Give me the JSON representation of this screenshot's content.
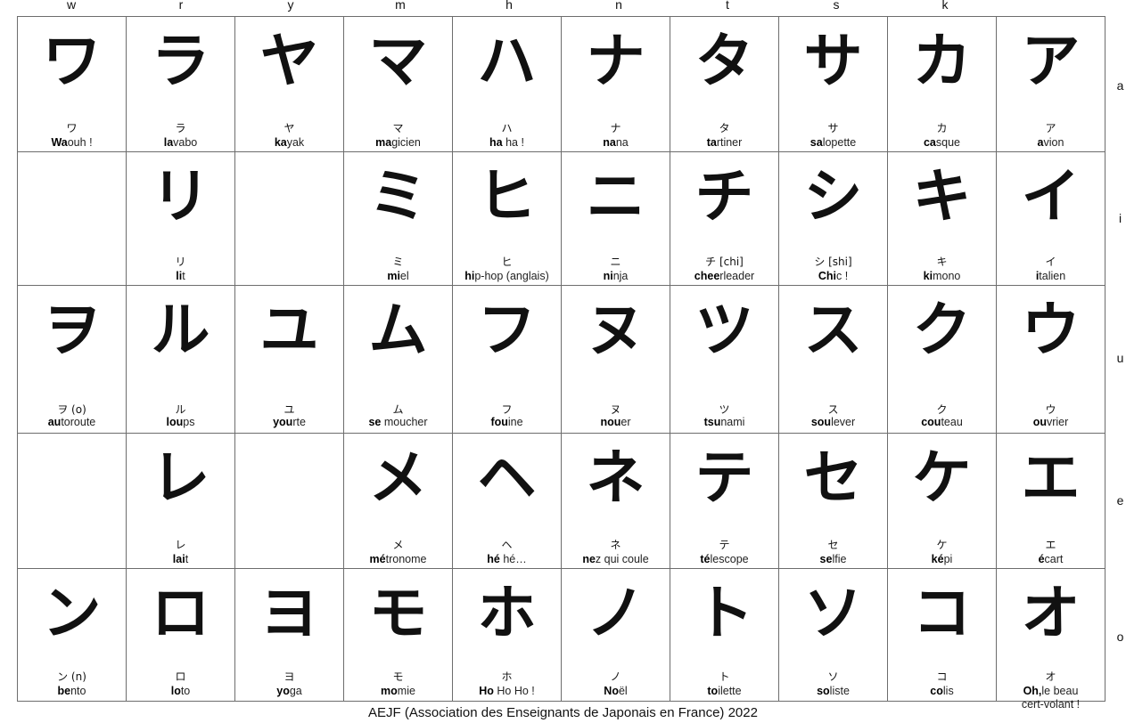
{
  "columns": [
    "w",
    "r",
    "y",
    "m",
    "h",
    "n",
    "t",
    "s",
    "k",
    ""
  ],
  "rows": [
    "a",
    "i",
    "u",
    "e",
    "o"
  ],
  "grid": [
    [
      {
        "big": "ワ",
        "small": "ワ",
        "w1": "Wa",
        "w2": "ouh !",
        "w3": ""
      },
      {
        "big": "ラ",
        "small": "ラ",
        "w1": "la",
        "w2": "vabo",
        "w3": ""
      },
      {
        "big": "ヤ",
        "small": "ヤ",
        "w1": "ka",
        "w2": "ya",
        "w3": "k"
      },
      {
        "big": "マ",
        "small": "マ",
        "w1": "ma",
        "w2": "gicien",
        "w3": ""
      },
      {
        "big": "ハ",
        "small": "ハ",
        "w1": "ha",
        "w2": " ha !",
        "w3": ""
      },
      {
        "big": "ナ",
        "small": "ナ",
        "w1": "na",
        "w2": "na",
        "w3": ""
      },
      {
        "big": "タ",
        "small": "タ",
        "w1": "ta",
        "w2": "rtiner",
        "w3": ""
      },
      {
        "big": "サ",
        "small": "サ",
        "w1": "sa",
        "w2": "lopette",
        "w3": ""
      },
      {
        "big": "カ",
        "small": "カ",
        "w1": "ca",
        "w2": "sque",
        "w3": ""
      },
      {
        "big": "ア",
        "small": "ア",
        "w1": "a",
        "w2": "vion",
        "w3": ""
      }
    ],
    [
      {
        "big": "",
        "small": "",
        "w1": "",
        "w2": "",
        "w3": ""
      },
      {
        "big": "リ",
        "small": "リ",
        "w1": "li",
        "w2": "t",
        "w3": ""
      },
      {
        "big": "",
        "small": "",
        "w1": "",
        "w2": "",
        "w3": ""
      },
      {
        "big": "ミ",
        "small": "ミ",
        "w1": "mi",
        "w2": "el",
        "w3": ""
      },
      {
        "big": "ヒ",
        "small": "ヒ",
        "w1": "hi",
        "w2": "p-hop (anglais)",
        "w3": ""
      },
      {
        "big": "ニ",
        "small": "ニ",
        "w1": "ni",
        "w2": "nja",
        "w3": ""
      },
      {
        "big": "チ",
        "small": "チ [chi]",
        "w1": "chee",
        "w2": "rleader",
        "w3": ""
      },
      {
        "big": "シ",
        "small": "シ [shi]",
        "w1": "Chi",
        "w2": "c !",
        "w3": ""
      },
      {
        "big": "キ",
        "small": "キ",
        "w1": "ki",
        "w2": "mono",
        "w3": ""
      },
      {
        "big": "イ",
        "small": "イ",
        "w1": "i",
        "w2": "talien",
        "w3": ""
      }
    ],
    [
      {
        "big": "ヲ",
        "small": "ヲ (o)",
        "w1": "au",
        "w2": "toroute",
        "w3": ""
      },
      {
        "big": "ル",
        "small": "ル",
        "w1": "lou",
        "w2": "ps",
        "w3": ""
      },
      {
        "big": "ユ",
        "small": "ユ",
        "w1": "you",
        "w2": "rte",
        "w3": ""
      },
      {
        "big": "ム",
        "small": "ム",
        "w1": "se ",
        "w2": "mou",
        "w3": "cher"
      },
      {
        "big": "フ",
        "small": "フ",
        "w1": "fou",
        "w2": "ine",
        "w3": ""
      },
      {
        "big": "ヌ",
        "small": "ヌ",
        "w1": "nou",
        "w2": "er",
        "w3": ""
      },
      {
        "big": "ツ",
        "small": "ツ",
        "w1": "tsu",
        "w2": "nami",
        "w3": ""
      },
      {
        "big": "ス",
        "small": "ス",
        "w1": "sou",
        "w2": "lever",
        "w3": ""
      },
      {
        "big": "ク",
        "small": "ク",
        "w1": "cou",
        "w2": "teau",
        "w3": ""
      },
      {
        "big": "ウ",
        "small": "ウ",
        "w1": "ou",
        "w2": "vrier",
        "w3": ""
      }
    ],
    [
      {
        "big": "",
        "small": "",
        "w1": "",
        "w2": "",
        "w3": ""
      },
      {
        "big": "レ",
        "small": "レ",
        "w1": "lai",
        "w2": "t",
        "w3": ""
      },
      {
        "big": "",
        "small": "",
        "w1": "",
        "w2": "",
        "w3": ""
      },
      {
        "big": "メ",
        "small": "メ",
        "w1": "mé",
        "w2": "tronome",
        "w3": ""
      },
      {
        "big": "ヘ",
        "small": "ヘ",
        "w1": "hé",
        "w2": " hé…",
        "w3": ""
      },
      {
        "big": "ネ",
        "small": "ネ",
        "w1": "ne",
        "w2": "z qui coule",
        "w3": ""
      },
      {
        "big": "テ",
        "small": "テ",
        "w1": "té",
        "w2": "lescope",
        "w3": ""
      },
      {
        "big": "セ",
        "small": "セ",
        "w1": "se",
        "w2": "lfie",
        "w3": ""
      },
      {
        "big": "ケ",
        "small": "ケ",
        "w1": "ké",
        "w2": "pi",
        "w3": ""
      },
      {
        "big": "エ",
        "small": "エ",
        "w1": "é",
        "w2": "cart",
        "w3": ""
      }
    ],
    [
      {
        "big": "ン",
        "small": "ン (n)",
        "w1": "be",
        "w2": "n",
        "w3": "to"
      },
      {
        "big": "ロ",
        "small": "ロ",
        "w1": "lo",
        "w2": "to",
        "w3": ""
      },
      {
        "big": "ヨ",
        "small": "ヨ",
        "w1": "yo",
        "w2": "ga",
        "w3": ""
      },
      {
        "big": "モ",
        "small": "モ",
        "w1": "mo",
        "w2": "mie",
        "w3": ""
      },
      {
        "big": "ホ",
        "small": "ホ",
        "w1": "Ho",
        "w2": " Ho Ho !",
        "w3": ""
      },
      {
        "big": "ノ",
        "small": "ノ",
        "w1": "No",
        "w2": "ël",
        "w3": ""
      },
      {
        "big": "ト",
        "small": "ト",
        "w1": "to",
        "w2": "ilette",
        "w3": ""
      },
      {
        "big": "ソ",
        "small": "ソ",
        "w1": "so",
        "w2": "liste",
        "w3": ""
      },
      {
        "big": "コ",
        "small": "コ",
        "w1": "co",
        "w2": "lis",
        "w3": ""
      },
      {
        "big": "オ",
        "small": "オ",
        "w1": "Oh,",
        "w2": "le beau",
        "w3": "cert-volant !"
      }
    ]
  ],
  "footer": "AEJF (Association des Enseignants de Japonais en France) 2022"
}
